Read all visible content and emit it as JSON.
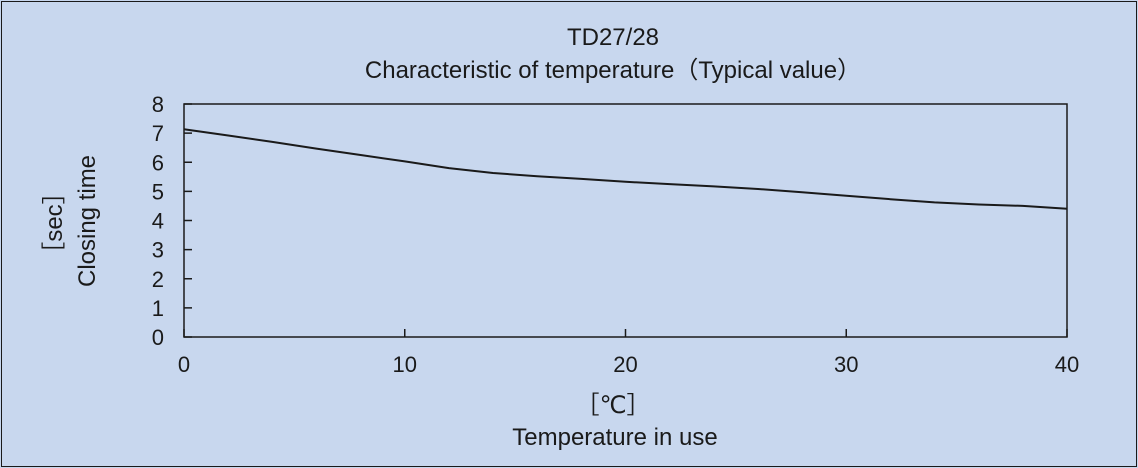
{
  "chart_data": {
    "type": "line",
    "title": "TD27/28",
    "subtitle": "Characteristic of temperature（Typical value）",
    "xlabel": "Temperature in use",
    "xunit": "［℃］",
    "ylabel": "Closing time",
    "yunit": "［sec］",
    "xlim": [
      0,
      40
    ],
    "ylim": [
      0,
      8
    ],
    "xticks": [
      0,
      10,
      20,
      30,
      40
    ],
    "yticks": [
      0,
      1,
      2,
      3,
      4,
      5,
      6,
      7,
      8
    ],
    "grid": false,
    "series": [
      {
        "x": [
          0,
          2,
          4,
          6,
          8,
          10,
          12,
          14,
          16,
          18,
          20,
          22,
          24,
          26,
          28,
          30,
          32,
          34,
          36,
          38,
          40
        ],
        "y": [
          7.13,
          6.92,
          6.7,
          6.47,
          6.25,
          6.03,
          5.8,
          5.63,
          5.52,
          5.43,
          5.33,
          5.25,
          5.17,
          5.08,
          4.97,
          4.85,
          4.73,
          4.62,
          4.55,
          4.5,
          4.4
        ]
      }
    ],
    "colors": {
      "line": "#1a1a1a",
      "background": "#c8d7ee"
    }
  }
}
